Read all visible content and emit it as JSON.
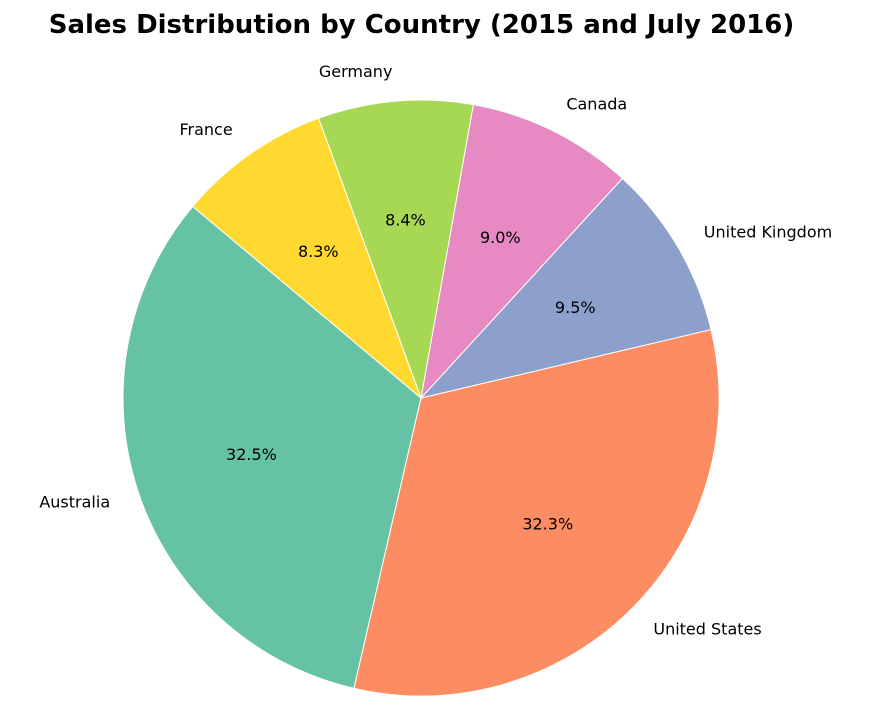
{
  "chart_data": {
    "type": "pie",
    "title": "Sales Distribution by Country (2015 and July 2016)",
    "categories": [
      "Australia",
      "United States",
      "United Kingdom",
      "Canada",
      "Germany",
      "France"
    ],
    "values": [
      32.5,
      32.3,
      9.5,
      9.0,
      8.4,
      8.3
    ],
    "value_labels": [
      "32.5%",
      "32.3%",
      "9.5%",
      "9.0%",
      "8.4%",
      "8.3%"
    ],
    "colors": [
      "#66c2a5",
      "#fc8d62",
      "#8da0cb",
      "#e78ac3",
      "#a6d854",
      "#ffd92f"
    ],
    "start_angle_deg": 140,
    "direction": "counterclockwise",
    "edge_color": "#ffffff"
  }
}
